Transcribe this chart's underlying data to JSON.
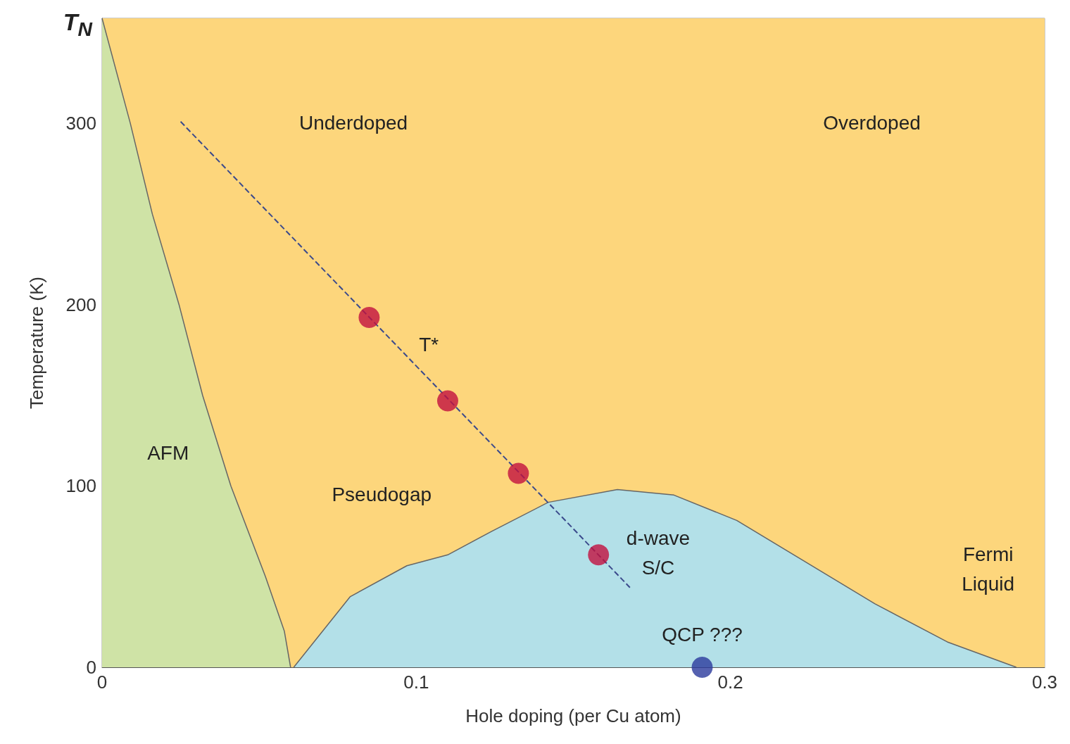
{
  "chart_data": {
    "type": "area",
    "xlabel": "Hole doping (per Cu atom)",
    "ylabel": "Temperature (K)",
    "xlim": [
      0,
      0.3
    ],
    "ylim": [
      0,
      358
    ],
    "xticks": [
      0,
      0.1,
      0.2,
      0.3
    ],
    "yticks": [
      0,
      100,
      200,
      300
    ],
    "grid": false,
    "bands": [
      {
        "axis": "x",
        "from": 0,
        "to": 0.3,
        "color": "#fdd67c"
      }
    ],
    "series": [
      {
        "color": "#cfe3a6",
        "x": [
          0,
          0.009,
          0.016,
          0.0245,
          0.032,
          0.041,
          0.052,
          0.058,
          0.06
        ],
        "values": [
          358,
          300,
          250,
          200,
          150,
          100,
          50,
          20,
          0
        ]
      },
      {
        "color": "#b3e0e8",
        "x": [
          0.061,
          0.079,
          0.097,
          0.11,
          0.124,
          0.142,
          0.164,
          0.182,
          0.202,
          0.224,
          0.246,
          0.269,
          0.291
        ],
        "values": [
          0,
          39,
          56,
          62,
          75,
          91,
          98,
          95,
          81,
          58,
          35,
          14,
          0
        ]
      },
      {
        "type": "line",
        "line_style": "dashed",
        "marker": "none",
        "color": "#3b4a8c",
        "x": [
          0.025,
          0.168
        ],
        "values": [
          301,
          44
        ]
      },
      {
        "type": "scatter",
        "marker": "circle",
        "color": "#c2103f",
        "x": [
          0.085,
          0.11,
          0.1325,
          0.158
        ],
        "values": [
          193,
          147,
          107,
          62
        ]
      },
      {
        "type": "scatter",
        "marker": "circle",
        "color": "#2b3a9c",
        "x": [
          0.191
        ],
        "values": [
          0
        ]
      }
    ],
    "annotations": [
      {
        "text": "T$_{N}$",
        "x": 0,
        "y": 358
      },
      "Underdoped",
      "Overdoped",
      "AFM",
      "Pseudogap",
      "T*",
      "d-wave\nS/C",
      {
        "text": "QCP ???",
        "x": 0.191,
        "y": 0
      },
      "Fermi\nLiquid"
    ]
  }
}
